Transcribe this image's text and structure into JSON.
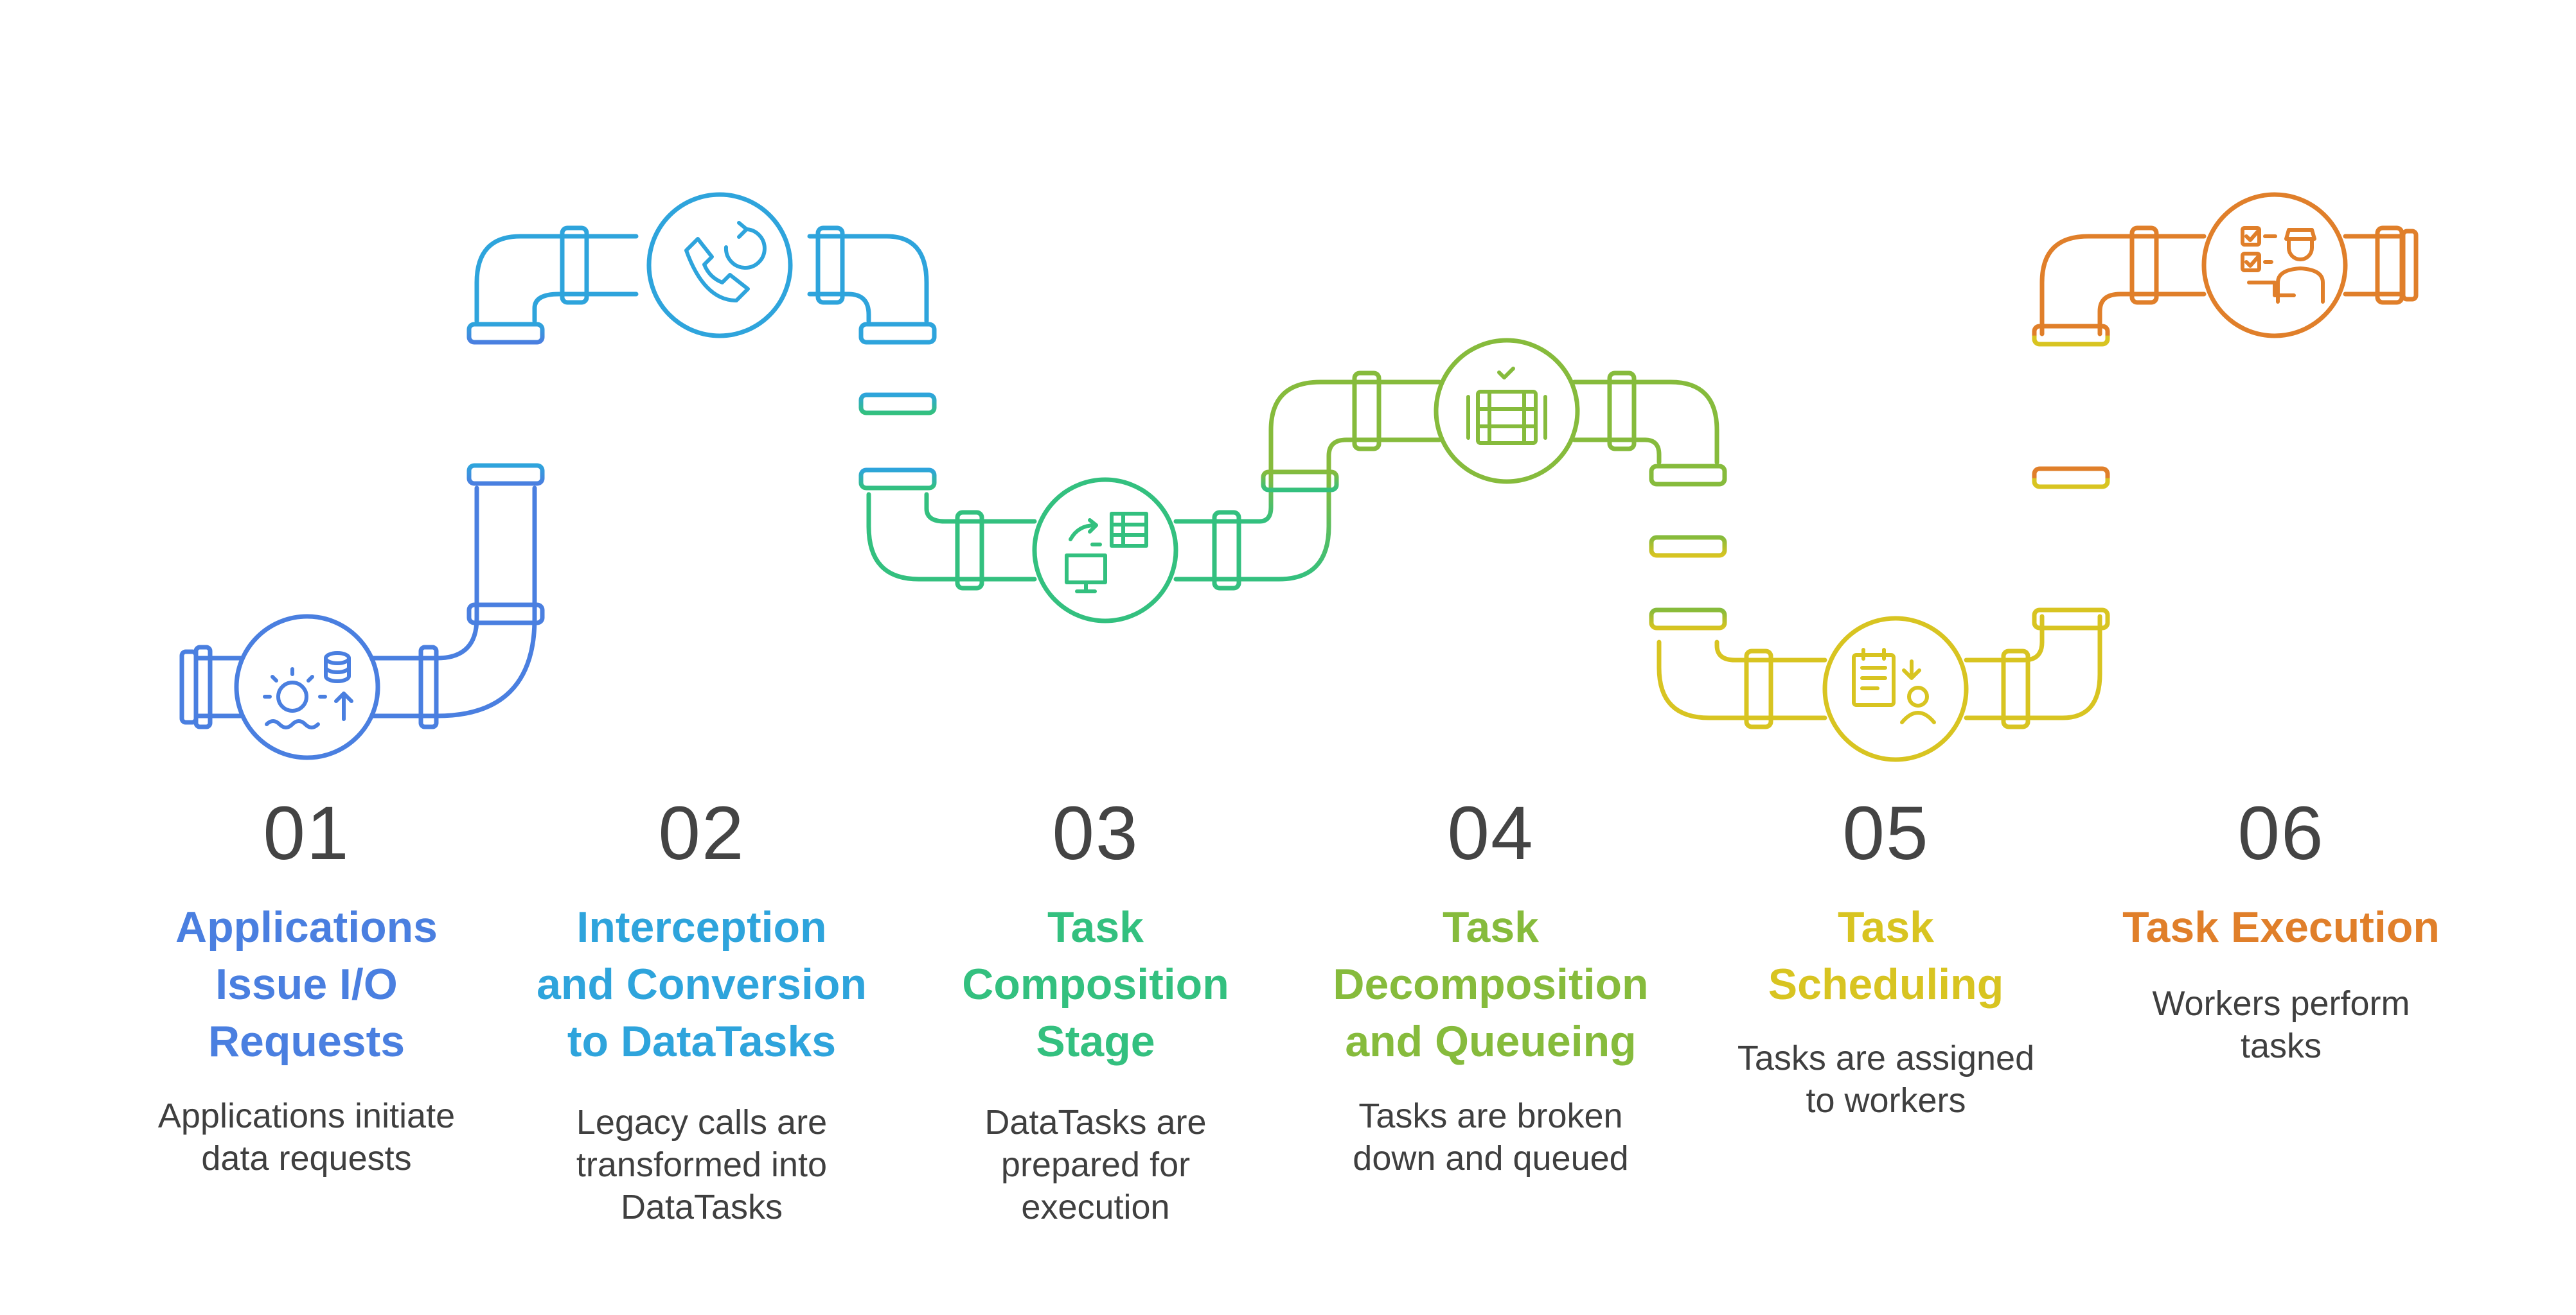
{
  "stages": [
    {
      "number": "01",
      "title": "Applications\nIssue I/O\nRequests",
      "description": "Applications initiate\ndata requests",
      "color": "#4a7fe0",
      "icon": "gear-database-upload-icon"
    },
    {
      "number": "02",
      "title": "Interception\nand Conversion\nto DataTasks",
      "description": "Legacy calls are\ntransformed into\nDataTasks",
      "color": "#2ea4dc",
      "icon": "phone-refresh-icon"
    },
    {
      "number": "03",
      "title": "Task\nComposition\nStage",
      "description": "DataTasks are\nprepared for\nexecution",
      "color": "#33c07f",
      "icon": "monitor-table-swap-icon"
    },
    {
      "number": "04",
      "title": "Task\nDecomposition\nand Queueing",
      "description": "Tasks are broken\ndown and queued",
      "color": "#86bb3c",
      "icon": "queue-stack-icon"
    },
    {
      "number": "05",
      "title": "Task\nScheduling",
      "description": "Tasks are assigned\nto workers",
      "color": "#d8c421",
      "icon": "clipboard-assign-worker-icon"
    },
    {
      "number": "06",
      "title": "Task Execution",
      "description": "Workers perform\ntasks",
      "color": "#e07f2a",
      "icon": "worker-checklist-icon"
    }
  ]
}
